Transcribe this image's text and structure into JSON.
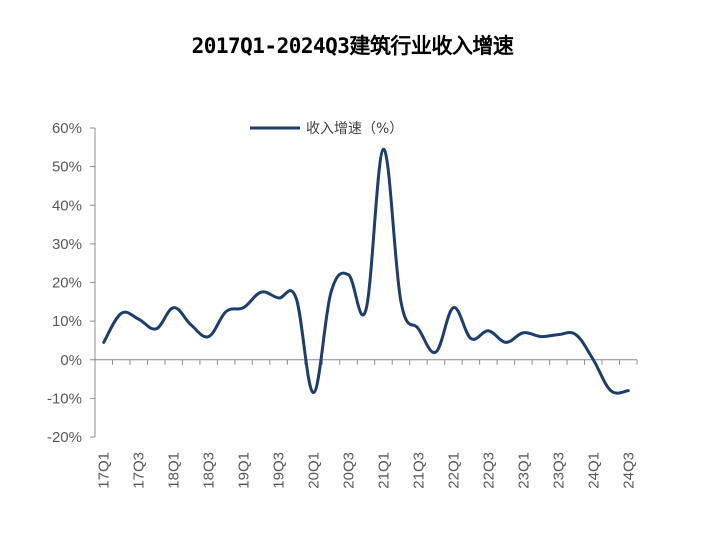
{
  "title": "2017Q1-2024Q3建筑行业收入增速",
  "chart_data": {
    "type": "line",
    "title": "2017Q1-2024Q3建筑行业收入增速",
    "xlabel": "",
    "ylabel": "",
    "categories": [
      "17Q1",
      "17Q2",
      "17Q3",
      "17Q4",
      "18Q1",
      "18Q2",
      "18Q3",
      "18Q4",
      "19Q1",
      "19Q2",
      "19Q3",
      "19Q4",
      "20Q1",
      "20Q2",
      "20Q3",
      "20Q4",
      "21Q1",
      "21Q2",
      "21Q3",
      "21Q4",
      "22Q1",
      "22Q2",
      "22Q3",
      "22Q4",
      "23Q1",
      "23Q2",
      "23Q3",
      "23Q4",
      "24Q1",
      "24Q2",
      "24Q3"
    ],
    "tick_labels": [
      "17Q1",
      "17Q3",
      "18Q1",
      "18Q3",
      "19Q1",
      "19Q3",
      "20Q1",
      "20Q3",
      "21Q1",
      "21Q3",
      "22Q1",
      "22Q3",
      "23Q1",
      "23Q3",
      "24Q1",
      "24Q3"
    ],
    "series": [
      {
        "name": "收入增速（%）",
        "values": [
          4.5,
          12.0,
          10.5,
          8.0,
          13.5,
          9.0,
          6.0,
          12.5,
          13.5,
          17.5,
          16.0,
          16.0,
          -8.5,
          17.5,
          22.0,
          13.0,
          54.5,
          15.0,
          8.0,
          2.0,
          13.5,
          5.5,
          7.5,
          4.5,
          7.0,
          6.0,
          6.5,
          6.5,
          0.0,
          -8.0,
          -8.0
        ],
        "color": "#1f3d6b"
      }
    ],
    "ylim": [
      -20,
      60
    ],
    "y_ticks": [
      "-20%",
      "-10%",
      "0%",
      "10%",
      "20%",
      "30%",
      "40%",
      "50%",
      "60%"
    ],
    "legend_position": "top-center",
    "grid": false
  }
}
